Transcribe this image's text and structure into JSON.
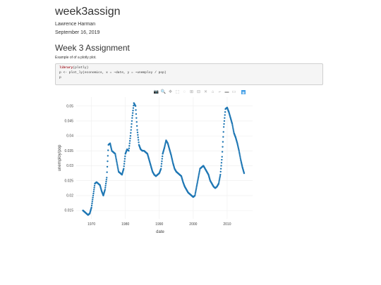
{
  "document": {
    "title": "week3assign",
    "author": "Lawrence Harman",
    "date": "September 16, 2019",
    "section_title": "Week 3 Assignment",
    "intro_text": "Example of of a plotly plot."
  },
  "code_block": {
    "lines": [
      {
        "keyword": "library",
        "rest": "(plotly)"
      },
      {
        "keyword": "",
        "rest": "p <- plot_ly(economics, x = ~date, y = ~unemploy / pop)"
      },
      {
        "keyword": "",
        "rest": "p"
      }
    ]
  },
  "modebar": {
    "buttons": [
      {
        "name": "camera-icon",
        "glyph": "📷",
        "active": false
      },
      {
        "name": "zoom-icon",
        "glyph": "🔍",
        "active": true
      },
      {
        "name": "pan-icon",
        "glyph": "✥",
        "active": false
      },
      {
        "name": "box-select-icon",
        "glyph": "⬚",
        "active": false
      },
      {
        "name": "lasso-select-icon",
        "glyph": "◌",
        "active": false
      },
      {
        "name": "zoom-in-icon",
        "glyph": "⊞",
        "active": false
      },
      {
        "name": "zoom-out-icon",
        "glyph": "⊟",
        "active": false
      },
      {
        "name": "autoscale-icon",
        "glyph": "✕",
        "active": false
      },
      {
        "name": "reset-axes-icon",
        "glyph": "⌂",
        "active": false
      },
      {
        "name": "spike-lines-icon",
        "glyph": "⌐",
        "active": false
      },
      {
        "name": "hover-closest-icon",
        "glyph": "▬",
        "active": false
      },
      {
        "name": "hover-compare-icon",
        "glyph": "▭",
        "active": false
      },
      {
        "name": "plotly-logo-icon",
        "glyph": "▦",
        "active": false
      }
    ]
  },
  "chart_data": {
    "type": "scatter",
    "xlabel": "date",
    "ylabel": "unemploy/pop",
    "xlim": [
      1965.5,
      2017.5
    ],
    "ylim": [
      0.0122,
      0.053
    ],
    "x_ticks": [
      1970,
      1980,
      1990,
      2000,
      2010
    ],
    "x_tick_labels": [
      "1970",
      "1980",
      "1990",
      "2000",
      "2010"
    ],
    "y_ticks": [
      0.015,
      0.02,
      0.025,
      0.03,
      0.035,
      0.04,
      0.045,
      0.05
    ],
    "y_tick_labels": [
      "0.015",
      "0.02",
      "0.025",
      "0.03",
      "0.035",
      "0.04",
      "0.045",
      "0.05"
    ],
    "grid": true,
    "colors": {
      "marker": "#1f77b4",
      "grid": "#eeeeee",
      "tick_text": "#444444"
    },
    "series": [
      {
        "x": [
          1967.5,
          1968.0,
          1968.5,
          1969.0,
          1969.5,
          1970.0,
          1970.5,
          1971.0,
          1971.5,
          1972.0,
          1972.5,
          1973.0,
          1973.5,
          1974.0,
          1974.5,
          1975.0,
          1975.5,
          1976.0,
          1976.5,
          1977.0,
          1977.5,
          1978.0,
          1978.5,
          1979.0,
          1979.5,
          1980.0,
          1980.5,
          1981.0,
          1981.5,
          1982.0,
          1982.5,
          1983.0,
          1983.5,
          1984.0,
          1984.5,
          1985.0,
          1985.5,
          1986.0,
          1986.5,
          1987.0,
          1987.5,
          1988.0,
          1988.5,
          1989.0,
          1989.5,
          1990.0,
          1990.5,
          1991.0,
          1991.5,
          1992.0,
          1992.5,
          1993.0,
          1993.5,
          1994.0,
          1994.5,
          1995.0,
          1995.5,
          1996.0,
          1996.5,
          1997.0,
          1997.5,
          1998.0,
          1998.5,
          1999.0,
          1999.5,
          2000.0,
          2000.5,
          2001.0,
          2001.5,
          2002.0,
          2002.5,
          2003.0,
          2003.5,
          2004.0,
          2004.5,
          2005.0,
          2005.5,
          2006.0,
          2006.5,
          2007.0,
          2007.5,
          2008.0,
          2008.5,
          2009.0,
          2009.5,
          2010.0,
          2010.5,
          2011.0,
          2011.5,
          2012.0,
          2012.5,
          2013.0,
          2013.5,
          2014.0,
          2014.5,
          2015.0
        ],
        "y": [
          0.015,
          0.0145,
          0.014,
          0.0135,
          0.014,
          0.016,
          0.02,
          0.024,
          0.0245,
          0.024,
          0.0235,
          0.0215,
          0.02,
          0.022,
          0.026,
          0.037,
          0.0375,
          0.035,
          0.0345,
          0.034,
          0.031,
          0.028,
          0.0275,
          0.027,
          0.029,
          0.034,
          0.0355,
          0.035,
          0.04,
          0.046,
          0.051,
          0.05,
          0.042,
          0.037,
          0.0355,
          0.035,
          0.035,
          0.0345,
          0.034,
          0.032,
          0.03,
          0.028,
          0.027,
          0.0265,
          0.027,
          0.0275,
          0.029,
          0.034,
          0.036,
          0.0385,
          0.0375,
          0.0355,
          0.0335,
          0.031,
          0.029,
          0.028,
          0.0275,
          0.027,
          0.0265,
          0.0245,
          0.023,
          0.022,
          0.021,
          0.0205,
          0.02,
          0.0195,
          0.02,
          0.023,
          0.026,
          0.029,
          0.0295,
          0.03,
          0.029,
          0.028,
          0.027,
          0.025,
          0.024,
          0.023,
          0.0225,
          0.023,
          0.024,
          0.027,
          0.033,
          0.043,
          0.049,
          0.0495,
          0.048,
          0.046,
          0.044,
          0.041,
          0.0395,
          0.0375,
          0.035,
          0.032,
          0.0295,
          0.0275
        ]
      }
    ]
  }
}
